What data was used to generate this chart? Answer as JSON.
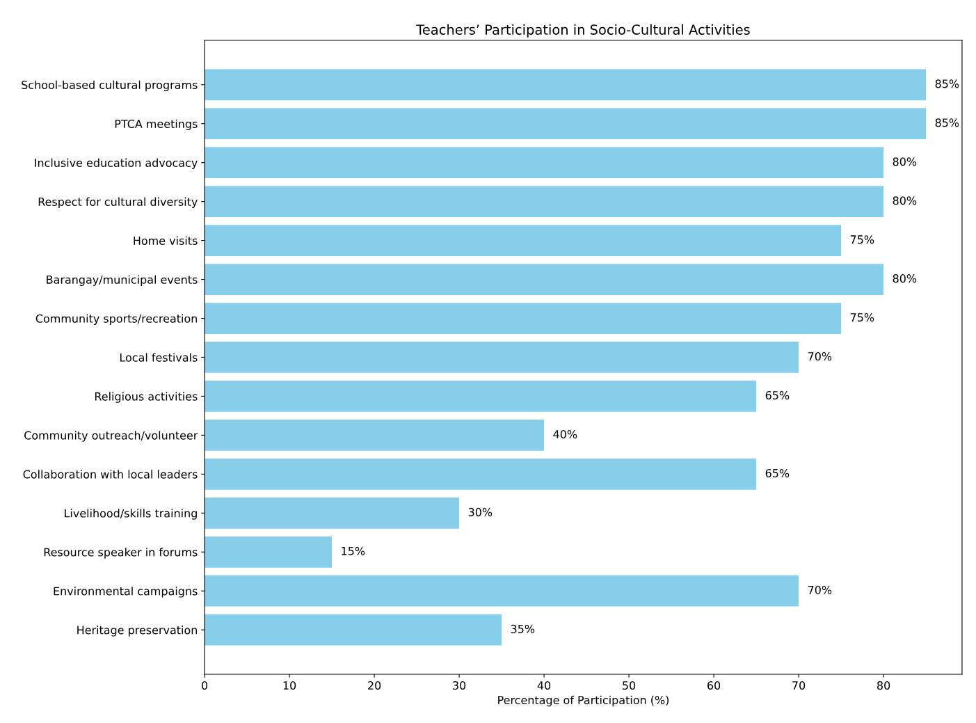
{
  "chart_data": {
    "type": "bar",
    "orientation": "horizontal",
    "title": "Teachers’ Participation in Socio-Cultural Activities",
    "xlabel": "Percentage of Participation (%)",
    "categories": [
      "School-based cultural programs",
      "PTCA meetings",
      "Inclusive education advocacy",
      "Respect for cultural diversity",
      "Home visits",
      "Barangay/municipal events",
      "Community sports/recreation",
      "Local festivals",
      "Religious activities",
      "Community outreach/volunteer",
      "Collaboration with local leaders",
      "Livelihood/skills training",
      "Resource speaker in forums",
      "Environmental campaigns",
      "Heritage preservation"
    ],
    "values": [
      85,
      85,
      80,
      80,
      75,
      80,
      75,
      70,
      65,
      40,
      65,
      30,
      15,
      70,
      35
    ],
    "value_labels": [
      "85%",
      "85%",
      "80%",
      "80%",
      "75%",
      "80%",
      "75%",
      "70%",
      "65%",
      "40%",
      "65%",
      "30%",
      "15%",
      "70%",
      "35%"
    ],
    "color": "#87ceeb",
    "xlim": [
      0,
      89.25
    ],
    "xticks": [
      0,
      10,
      20,
      30,
      40,
      50,
      60,
      70,
      80
    ],
    "grid": false
  }
}
